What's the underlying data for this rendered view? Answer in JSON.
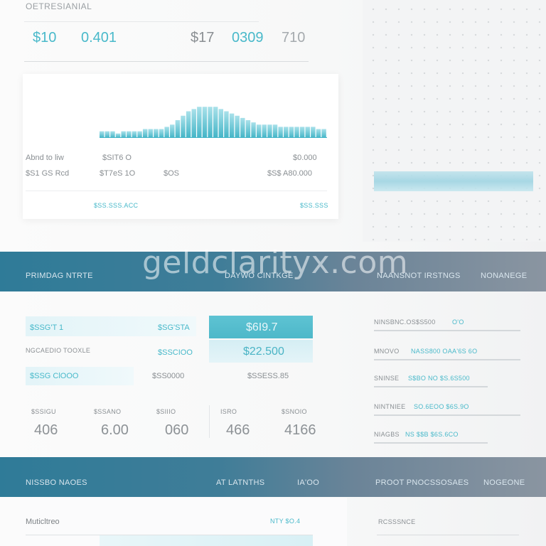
{
  "header": {
    "title": "OETRESIANIAL",
    "stats": [
      "$10",
      "0.401",
      "$17",
      "0309",
      "710"
    ]
  },
  "chart_card": {
    "caption_left": "",
    "caption_mid": "",
    "caption_right": "",
    "rows": [
      {
        "label": "Abnd to liw",
        "value1": "$SIT6 O",
        "value2": "",
        "value3": "$0.000"
      },
      {
        "label": "$S1 GS Rcd",
        "value1": "$T7eS 1O",
        "value2": "$OS",
        "value3": "$S$ A80.000"
      }
    ],
    "footer_left": "",
    "footer_mid": "$SS.SSS.ACC",
    "footer_right": "$SS.SSS",
    "chart_data": {
      "type": "bar",
      "values": [
        3,
        3,
        3,
        2,
        3,
        3,
        3,
        3,
        4,
        4,
        4,
        4,
        5,
        6,
        8,
        10,
        12,
        13,
        14,
        14,
        14,
        14,
        13,
        12,
        11,
        10,
        9,
        8,
        7,
        6,
        6,
        6,
        6,
        5,
        5,
        5,
        5,
        5,
        5,
        5,
        4,
        4
      ],
      "ylim": [
        0,
        16
      ]
    }
  },
  "band1": {
    "left": "PRIMDAG NTRTE",
    "mid": "DAYWO CINTKGE",
    "right": "NAANSNOT IRSTNGS",
    "far_right": "NONANEGE",
    "watermark": "geldclarityx.com"
  },
  "middle": {
    "row1": {
      "label": "$SSG'T 1",
      "value": "$SG'STA",
      "box": "$6I9.7"
    },
    "row2": {
      "label": "NGCAEDIO TOOXLE",
      "value": "$SSCIOO",
      "box": "$22.500"
    },
    "row3": {
      "label": "$SSG ClOOO",
      "value": "$SS0000",
      "box": "$SSESS.85"
    },
    "metrics_labels": [
      "$SSIGU",
      "$SSANO",
      "$SIIIO",
      "ISRO",
      "$SNOIO"
    ],
    "metrics_values": [
      "406",
      "6.00",
      "060",
      "466",
      "4166"
    ]
  },
  "right_list": [
    {
      "label": "NINSBNC.OS$S500",
      "value": "O'O"
    },
    {
      "label": "MNOVO",
      "value": "NASS800 OAA'6S 6O"
    },
    {
      "label": "SNINSE",
      "value": "S$BO NO  $S.6S500"
    },
    {
      "label": "NINTNIEE",
      "value": "SO.6EOO  $6S.9O"
    },
    {
      "label": "NIAGBS",
      "value": "NS     $$B   $6S.6CO"
    }
  ],
  "band2": {
    "left": "NISSBO NAOES",
    "mid": "AT LATNTHS",
    "mid_right": "IA'OO",
    "right": "PROOT PNOCSSOSAES",
    "far_right": "NOGEONE"
  },
  "bottom": {
    "left_label": "Muticltreo",
    "right_value": "NTY $O.4",
    "right_panel_label": "RCSSSNCE"
  },
  "colors": {
    "accent": "#49b9ca",
    "band": "#2f7b98",
    "text": "#6f7478"
  }
}
